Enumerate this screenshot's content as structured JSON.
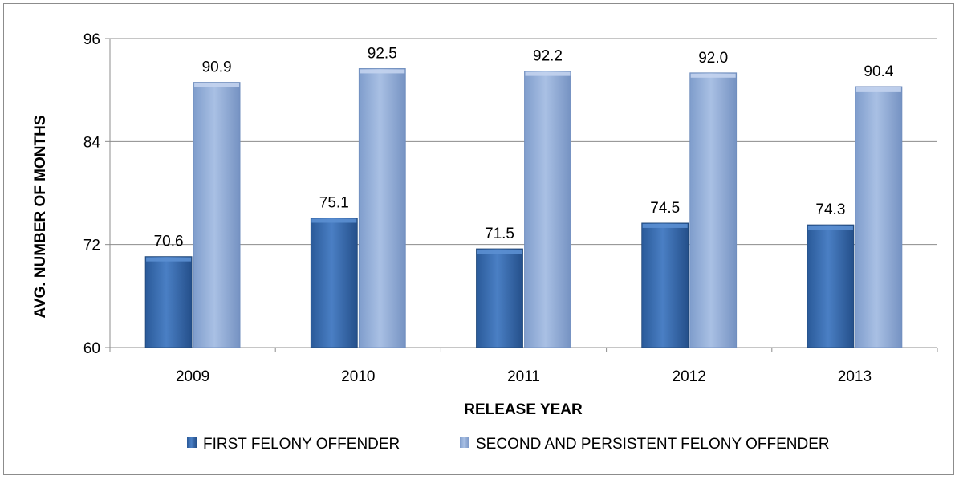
{
  "chart_data": {
    "type": "bar",
    "title": "",
    "xlabel": "RELEASE YEAR",
    "ylabel": "AVG. NUMBER OF MONTHS",
    "categories": [
      "2009",
      "2010",
      "2011",
      "2012",
      "2013"
    ],
    "ylim": [
      60,
      96
    ],
    "yticks": [
      60,
      72,
      84,
      96
    ],
    "grid": true,
    "legend_position": "bottom",
    "series": [
      {
        "name": "FIRST FELONY OFFENDER",
        "values": [
          70.6,
          75.1,
          71.5,
          74.5,
          74.3
        ],
        "labels": [
          "70.6",
          "75.1",
          "71.5",
          "74.5",
          "74.3"
        ],
        "color": "#3a6fb5"
      },
      {
        "name": "SECOND AND PERSISTENT FELONY OFFENDER",
        "values": [
          90.9,
          92.5,
          92.2,
          92.0,
          90.4
        ],
        "labels": [
          "90.9",
          "92.5",
          "92.2",
          "92.0",
          "90.4"
        ],
        "color": "#94afd9"
      }
    ]
  }
}
